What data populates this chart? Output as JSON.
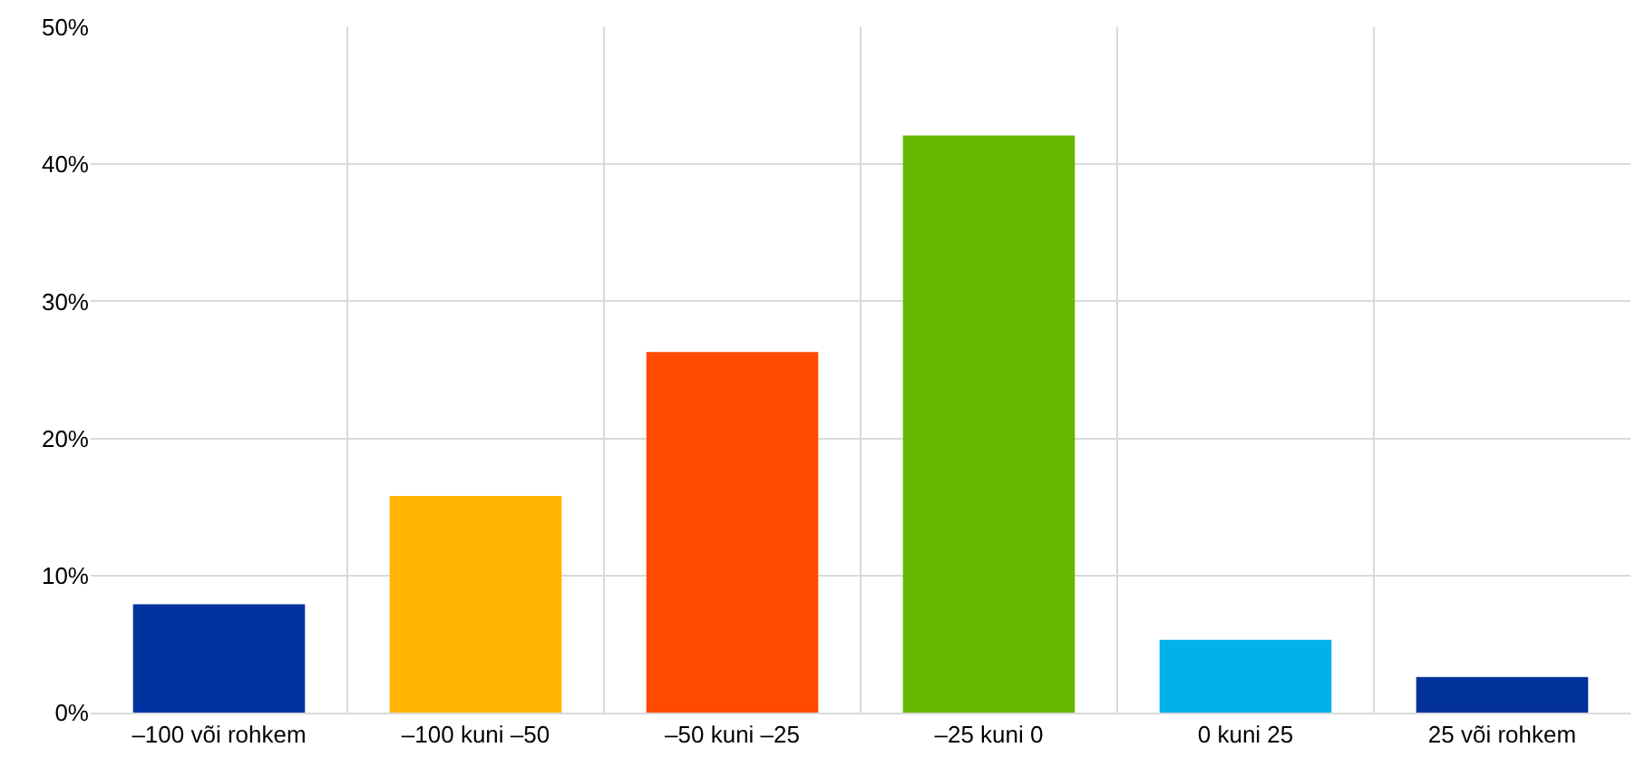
{
  "chart_data": {
    "type": "bar",
    "categories": [
      "–100 või rohkem",
      "–100 kuni –50",
      "–50 kuni –25",
      "–25 kuni 0",
      "0 kuni 25",
      "25 või rohkem"
    ],
    "values": [
      7.9,
      15.8,
      26.3,
      42.1,
      5.3,
      2.6
    ],
    "colors": [
      "#0033a0",
      "#ffb400",
      "#ff4b00",
      "#65b800",
      "#00b1ea",
      "#003299"
    ],
    "ylim": [
      0,
      50
    ],
    "yticks": [
      {
        "value": 0,
        "label": "0%"
      },
      {
        "value": 10,
        "label": "10%"
      },
      {
        "value": 20,
        "label": "20%"
      },
      {
        "value": 30,
        "label": "30%"
      },
      {
        "value": 40,
        "label": "40%"
      },
      {
        "value": 50,
        "label": "50%"
      }
    ],
    "grid": true
  }
}
